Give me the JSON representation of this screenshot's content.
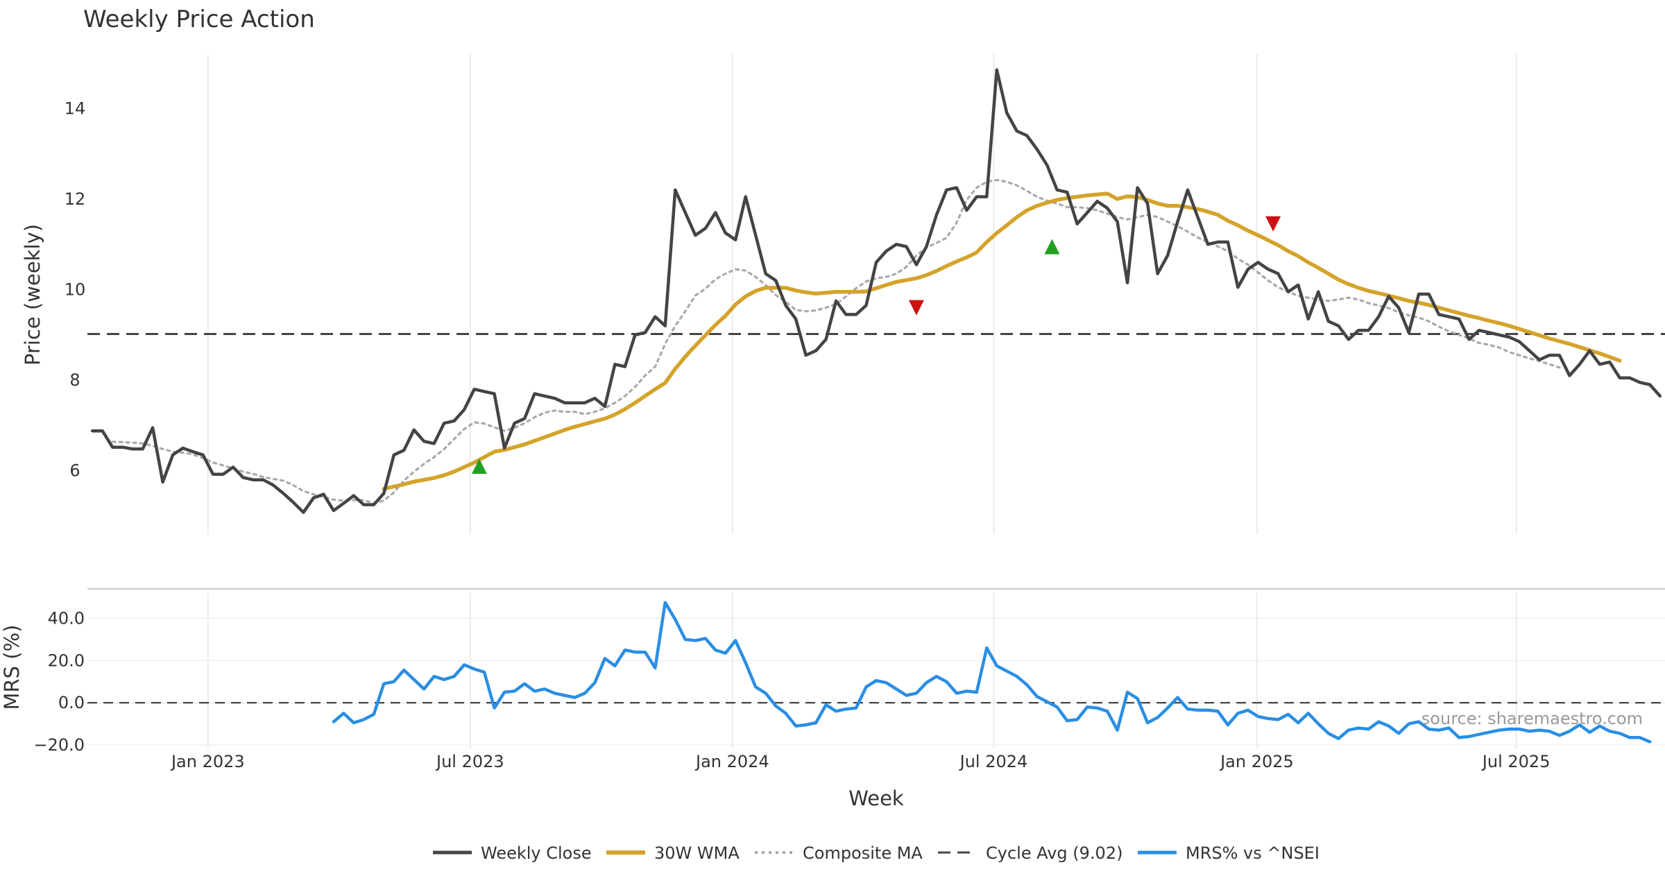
{
  "chart_data": {
    "type": "line",
    "title": "Weekly Price Action",
    "source_note": "source: sharemaestro.com",
    "panels": {
      "price": {
        "ylabel": "Price (weekly)",
        "ylim": [
          4.6,
          15.2
        ],
        "yticks": [
          6,
          8,
          10,
          12,
          14
        ]
      },
      "mrs": {
        "ylabel": "MRS (%)",
        "ylim": [
          -22,
          52
        ],
        "yticks": [
          -20,
          0,
          20,
          40
        ],
        "ytick_labels": [
          "−20.0",
          "0.0",
          "20.0",
          "40.0"
        ]
      }
    },
    "xlabel": "Week",
    "x_ticks": [
      {
        "label": "Jan 2023",
        "week": 11.5
      },
      {
        "label": "Jul 2023",
        "week": 37.6
      },
      {
        "label": "Jan 2024",
        "week": 63.7
      },
      {
        "label": "Jul 2024",
        "week": 89.7
      },
      {
        "label": "Jan 2025",
        "week": 115.9
      },
      {
        "label": "Jul 2025",
        "week": 141.7
      }
    ],
    "x_range": [
      -0.5,
      156.5
    ],
    "cycle_avg": 9.02,
    "legend": [
      "Weekly Close",
      "30W WMA",
      "Composite MA",
      "Cycle Avg (9.02)",
      "MRS% vs ^NSEI"
    ],
    "series": [
      {
        "name": "Weekly Close",
        "color": "#444444",
        "start": 0,
        "values": [
          6.88,
          6.88,
          6.52,
          6.52,
          6.48,
          6.48,
          6.95,
          5.75,
          6.35,
          6.5,
          6.42,
          6.35,
          5.92,
          5.92,
          6.08,
          5.85,
          5.8,
          5.8,
          5.68,
          5.5,
          5.3,
          5.08,
          5.4,
          5.48,
          5.12,
          5.28,
          5.45,
          5.25,
          5.25,
          5.5,
          6.35,
          6.45,
          6.9,
          6.65,
          6.6,
          7.05,
          7.1,
          7.35,
          7.8,
          7.75,
          7.7,
          6.5,
          7.05,
          7.15,
          7.7,
          7.65,
          7.6,
          7.5,
          7.5,
          7.5,
          7.6,
          7.42,
          8.35,
          8.3,
          9.0,
          9.05,
          9.4,
          9.2,
          12.2,
          11.7,
          11.2,
          11.35,
          11.7,
          11.25,
          11.1,
          12.05,
          11.2,
          10.35,
          10.2,
          9.65,
          9.35,
          8.55,
          8.65,
          8.9,
          9.75,
          9.45,
          9.45,
          9.65,
          10.6,
          10.85,
          11.0,
          10.95,
          10.55,
          10.95,
          11.65,
          12.2,
          12.25,
          11.75,
          12.05,
          12.05,
          14.85,
          13.9,
          13.5,
          13.4,
          13.1,
          12.75,
          12.2,
          12.15,
          11.45,
          11.7,
          11.95,
          11.8,
          11.5,
          10.15,
          12.25,
          11.9,
          10.35,
          10.75,
          11.5,
          12.2,
          11.6,
          11.0,
          11.05,
          11.05,
          10.05,
          10.45,
          10.6,
          10.45,
          10.35,
          9.95,
          10.1,
          9.35,
          9.95,
          9.3,
          9.2,
          8.9,
          9.1,
          9.1,
          9.4,
          9.85,
          9.6,
          9.05,
          9.9,
          9.9,
          9.45,
          9.4,
          9.35,
          8.9,
          9.1,
          9.05,
          9.0,
          8.95,
          8.85,
          8.65,
          8.45,
          8.55,
          8.55,
          8.1,
          8.35,
          8.65,
          8.35,
          8.4,
          8.05,
          8.05,
          7.95,
          7.9,
          7.65
        ]
      },
      {
        "name": "30W WMA",
        "color": "#d4a32a",
        "start": 29,
        "values": [
          5.6,
          5.65,
          5.7,
          5.76,
          5.8,
          5.84,
          5.9,
          5.98,
          6.08,
          6.18,
          6.3,
          6.42,
          6.46,
          6.52,
          6.58,
          6.66,
          6.74,
          6.82,
          6.9,
          6.97,
          7.03,
          7.09,
          7.15,
          7.24,
          7.36,
          7.5,
          7.65,
          7.8,
          7.94,
          8.25,
          8.52,
          8.76,
          8.99,
          9.22,
          9.42,
          9.67,
          9.85,
          9.97,
          10.04,
          10.04,
          10.04,
          9.98,
          9.94,
          9.91,
          9.93,
          9.95,
          9.95,
          9.95,
          9.96,
          10.03,
          10.1,
          10.17,
          10.21,
          10.25,
          10.32,
          10.41,
          10.52,
          10.62,
          10.71,
          10.82,
          11.05,
          11.25,
          11.42,
          11.6,
          11.75,
          11.85,
          11.92,
          11.98,
          12.02,
          12.05,
          12.08,
          12.1,
          12.12,
          12.0,
          12.06,
          12.04,
          11.98,
          11.9,
          11.85,
          11.85,
          11.82,
          11.78,
          11.72,
          11.65,
          11.52,
          11.42,
          11.3,
          11.2,
          11.09,
          10.98,
          10.85,
          10.74,
          10.6,
          10.48,
          10.35,
          10.22,
          10.12,
          10.04,
          9.97,
          9.92,
          9.87,
          9.81,
          9.75,
          9.71,
          9.66,
          9.6,
          9.54,
          9.48,
          9.42,
          9.37,
          9.31,
          9.26,
          9.2,
          9.13,
          9.06,
          8.99,
          8.92,
          8.86,
          8.8,
          8.73,
          8.66,
          8.59,
          8.51,
          8.43
        ]
      },
      {
        "name": "Composite MA",
        "color": "#aaaaaa",
        "start": 2,
        "values": [
          6.64,
          6.63,
          6.62,
          6.6,
          6.55,
          6.48,
          6.42,
          6.4,
          6.36,
          6.28,
          6.18,
          6.12,
          6.05,
          5.98,
          5.93,
          5.86,
          5.82,
          5.78,
          5.68,
          5.55,
          5.48,
          5.42,
          5.36,
          5.34,
          5.35,
          5.35,
          5.28,
          5.34,
          5.52,
          5.78,
          5.98,
          6.15,
          6.3,
          6.48,
          6.7,
          6.92,
          7.07,
          7.04,
          6.96,
          6.88,
          6.95,
          7.05,
          7.18,
          7.28,
          7.33,
          7.3,
          7.3,
          7.25,
          7.3,
          7.38,
          7.5,
          7.65,
          7.85,
          8.1,
          8.3,
          8.8,
          9.2,
          9.52,
          9.87,
          10.02,
          10.23,
          10.35,
          10.45,
          10.42,
          10.28,
          10.1,
          9.88,
          9.73,
          9.55,
          9.52,
          9.54,
          9.6,
          9.68,
          9.85,
          10.03,
          10.18,
          10.25,
          10.28,
          10.35,
          10.5,
          10.75,
          10.93,
          11.03,
          11.14,
          11.48,
          11.98,
          12.25,
          12.38,
          12.42,
          12.38,
          12.3,
          12.18,
          12.05,
          11.96,
          11.9,
          11.82,
          11.82,
          11.8,
          11.75,
          11.68,
          11.6,
          11.55,
          11.6,
          11.65,
          11.6,
          11.5,
          11.4,
          11.28,
          11.15,
          11.05,
          10.95,
          10.85,
          10.68,
          10.55,
          10.38,
          10.2,
          10.05,
          9.95,
          9.86,
          9.82,
          9.78,
          9.75,
          9.78,
          9.82,
          9.78,
          9.7,
          9.65,
          9.59,
          9.5,
          9.43,
          9.38,
          9.3,
          9.18,
          9.08,
          9.0,
          8.92,
          8.82,
          8.78,
          8.72,
          8.62,
          8.55,
          8.48,
          8.42,
          8.35,
          8.28
        ]
      },
      {
        "name": "MRS% vs ^NSEI",
        "color": "#2a8ee4",
        "start": 24,
        "values": [
          -9.0,
          -5.0,
          -9.5,
          -8.0,
          -5.5,
          9.0,
          10.0,
          15.5,
          11.0,
          6.5,
          12.5,
          11.0,
          12.5,
          18.0,
          16.0,
          14.5,
          -2.5,
          5.0,
          5.5,
          9.0,
          5.5,
          6.5,
          4.5,
          3.5,
          2.5,
          4.5,
          9.5,
          21.0,
          17.5,
          25.0,
          24.0,
          24.0,
          16.5,
          47.5,
          39.5,
          30.0,
          29.5,
          30.5,
          25.0,
          23.5,
          29.5,
          19.0,
          7.5,
          4.5,
          -1.5,
          -5.0,
          -11.0,
          -10.5,
          -9.5,
          -1.0,
          -4.0,
          -3.0,
          -2.5,
          7.5,
          10.5,
          9.5,
          6.5,
          3.5,
          4.5,
          9.5,
          12.5,
          10.0,
          4.5,
          5.5,
          5.0,
          26.0,
          17.5,
          15.0,
          12.5,
          8.5,
          3.0,
          0.5,
          -2.0,
          -8.5,
          -8.0,
          -2.0,
          -2.5,
          -4.0,
          -13.0,
          5.0,
          2.0,
          -9.5,
          -7.0,
          -2.5,
          2.5,
          -3.0,
          -3.5,
          -3.5,
          -4.0,
          -10.5,
          -5.0,
          -3.5,
          -6.5,
          -7.5,
          -8.0,
          -5.5,
          -9.5,
          -5.0,
          -10.0,
          -14.5,
          -17.0,
          -13.0,
          -12.0,
          -12.5,
          -9.0,
          -11.0,
          -14.5,
          -10.0,
          -9.0,
          -12.5,
          -13.0,
          -12.0,
          -16.5,
          -16.0,
          -15.0,
          -14.0,
          -13.0,
          -12.5,
          -12.5,
          -13.5,
          -13.0,
          -13.5,
          -15.5,
          -13.5,
          -10.5,
          -14.0,
          -11.0,
          -13.5,
          -14.5,
          -16.5,
          -16.5,
          -18.5
        ]
      }
    ],
    "markers": [
      {
        "type": "buy",
        "week": 38.5,
        "price": 6.1,
        "color": "#22a022"
      },
      {
        "type": "sell",
        "week": 82.0,
        "price": 9.6,
        "color": "#cc1111"
      },
      {
        "type": "buy",
        "week": 95.5,
        "price": 10.95,
        "color": "#22a022"
      },
      {
        "type": "sell",
        "week": 117.5,
        "price": 11.45,
        "color": "#cc1111"
      }
    ]
  }
}
